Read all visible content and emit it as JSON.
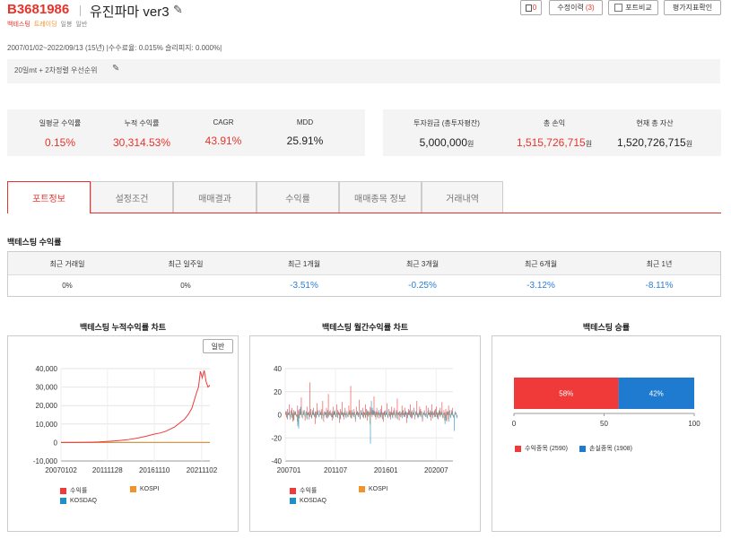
{
  "header": {
    "code": "B3681986",
    "name": "유진파마 ver3",
    "tags": [
      "백테스팅",
      "트레이딩",
      "일봉",
      "일반"
    ],
    "buttons": {
      "memo_count": "0",
      "edit_history_label": "수정이력",
      "edit_history_count": "(3)",
      "portfolio_compare": "포트비교",
      "eval_metrics": "평가지표확인"
    }
  },
  "period_text": "2007/01/02~2022/09/13 (15년) |수수료율: 0.015% 슬리피지: 0.000%|",
  "memo": "20일mt + 2차정렬 우선순위",
  "stats": {
    "left": [
      {
        "label": "일평균 수익률",
        "value": "0.15%"
      },
      {
        "label": "누적 수익률",
        "value": "30,314.53%"
      },
      {
        "label": "CAGR",
        "value": "43.91%"
      },
      {
        "label": "MDD",
        "value": "25.91%"
      }
    ],
    "right": [
      {
        "label": "투자원금 (총투자평잔)",
        "value": "5,000,000",
        "unit": "원"
      },
      {
        "label": "총 손익",
        "value": "1,515,726,715",
        "unit": "원"
      },
      {
        "label": "현재 총 자산",
        "value": "1,520,726,715",
        "unit": "원"
      }
    ]
  },
  "tabs": [
    "포트정보",
    "설정조건",
    "매매결과",
    "수익률",
    "매매종목 정보",
    "거래내역"
  ],
  "backtest_returns": {
    "title": "백테스팅 수익률",
    "headers": [
      "최근 거래일",
      "최근 일주일",
      "최근 1개월",
      "최근 3개월",
      "최근 6개월",
      "최근 1년"
    ],
    "values": [
      "0%",
      "0%",
      "-3.51%",
      "-0.25%",
      "-3.12%",
      "-8.11%"
    ]
  },
  "colors": {
    "accent": "#e8332c",
    "kospi": "#f0932b",
    "kosdaq": "#1f8fc9",
    "profit": "#f03a3a",
    "loss": "#1f7bd0",
    "negative_value": "#2e7dd2"
  },
  "charts": {
    "cumulative_title": "백테스팅 누적수익률 차트",
    "general_button": "일반",
    "monthly_title": "백테스팅 월간수익률 차트",
    "winrate_title": "백테스팅 승률"
  },
  "chart_data": [
    {
      "type": "line",
      "title": "백테스팅 누적수익률 차트",
      "x_ticks": [
        "20070102",
        "20111128",
        "20161110",
        "20211102"
      ],
      "y_ticks": [
        -10000,
        0,
        10000,
        20000,
        30000,
        40000
      ],
      "y_tick_labels": [
        "-10,000",
        "0",
        "10,000",
        "20,000",
        "30,000",
        "40,000"
      ],
      "ylim": [
        -10000,
        40000
      ],
      "series": [
        {
          "name": "수익률",
          "color": "#f03a3a",
          "x": [
            2007.0,
            2008.0,
            2009.0,
            2010.0,
            2011.0,
            2012.0,
            2013.0,
            2014.0,
            2015.0,
            2016.0,
            2016.8,
            2017.5,
            2018.0,
            2018.5,
            2019.0,
            2019.5,
            2020.0,
            2020.4,
            2020.8,
            2021.0,
            2021.3,
            2021.5,
            2021.7,
            2021.9,
            2022.1,
            2022.3,
            2022.5,
            2022.7
          ],
          "y": [
            0,
            20,
            60,
            150,
            300,
            600,
            1000,
            1500,
            2300,
            3400,
            4500,
            5200,
            6000,
            7200,
            8500,
            10500,
            12500,
            15000,
            18500,
            22000,
            27000,
            30000,
            38500,
            35000,
            39000,
            33000,
            30000,
            31000
          ]
        },
        {
          "name": "KOSPI",
          "color": "#f0932b",
          "x": [
            2007.0,
            2022.7
          ],
          "y": [
            0,
            40
          ]
        },
        {
          "name": "KOSDAQ",
          "color": "#1f8fc9",
          "x": [
            2007.0,
            2022.7
          ],
          "y": [
            0,
            30
          ]
        }
      ]
    },
    {
      "type": "bar",
      "title": "백테스팅 월간수익률 차트",
      "x_ticks": [
        "200701",
        "201107",
        "201601",
        "202007"
      ],
      "y_ticks": [
        -40,
        -20,
        0,
        20,
        40
      ],
      "ylim": [
        -40,
        40
      ],
      "series": [
        {
          "name": "수익률",
          "color": "#f03a3a",
          "values": [
            3,
            -2,
            5,
            1,
            9,
            -4,
            2,
            6,
            -6,
            4,
            1,
            3,
            -1,
            8,
            4,
            -3,
            2,
            15,
            -2,
            4,
            1,
            -5,
            3,
            7,
            2,
            -4,
            28,
            5,
            -3,
            2,
            6,
            1,
            -8,
            3,
            10,
            2,
            -2,
            4,
            1,
            5,
            12,
            -6,
            3,
            2,
            6,
            -3,
            18,
            2,
            4,
            1,
            -5,
            7,
            3,
            2,
            -2,
            9,
            4,
            1,
            -7,
            5,
            3,
            11,
            2,
            -4,
            6,
            1,
            3,
            -2,
            8,
            4,
            25,
            -3,
            2,
            5,
            1,
            -6,
            7,
            3,
            2,
            13,
            -4,
            4,
            1,
            6,
            -3,
            2,
            9,
            5,
            -5,
            3,
            1,
            7,
            2,
            -2,
            4,
            16,
            3,
            -4,
            6,
            2,
            1,
            -3,
            5,
            8,
            2,
            -6,
            3,
            4,
            1,
            10,
            -2,
            5,
            3,
            -4,
            7,
            2,
            1,
            6,
            -3,
            4,
            14,
            2,
            -5,
            3,
            1,
            8,
            4,
            -2,
            6,
            3,
            -7,
            2,
            5,
            1,
            9,
            -3,
            4,
            2,
            6,
            -4,
            3,
            12,
            1,
            -2,
            7,
            5,
            3,
            -6,
            2,
            4,
            1,
            8,
            -3,
            6,
            2,
            4,
            -5,
            9,
            3,
            1,
            -2,
            5,
            7,
            2,
            -4,
            3,
            6,
            1,
            11,
            -3,
            4,
            2,
            5,
            -6,
            3,
            8,
            1,
            -2,
            4,
            6
          ]
        },
        {
          "name": "KOSPI",
          "color": "#f0932b",
          "values": [
            2,
            -3,
            1,
            2,
            -1,
            3,
            -2,
            1,
            -4,
            2,
            1,
            -1,
            -6,
            -8,
            3,
            5,
            2,
            -2,
            1,
            3,
            -1,
            2,
            -3,
            1,
            2,
            -1,
            1,
            -2,
            3,
            1,
            -1,
            2,
            -2,
            1,
            3,
            -1,
            1,
            2,
            -3,
            1,
            -1,
            2,
            1,
            -2,
            3,
            -1,
            2,
            1,
            -1,
            2,
            -2,
            1,
            3,
            -1,
            1,
            -2,
            2,
            1,
            -3,
            1,
            2,
            -1,
            1,
            3,
            -2,
            1,
            -1,
            2,
            1,
            -2,
            3,
            1,
            -1,
            2,
            -3,
            1,
            2,
            -1,
            1,
            -2,
            3,
            1,
            -1,
            2,
            1,
            -2,
            1,
            3,
            -1,
            2,
            -8,
            6,
            4,
            2,
            3,
            -1,
            2,
            1,
            -2,
            3,
            1,
            -1,
            2,
            -3,
            1,
            2,
            -1,
            1,
            3,
            -2,
            1,
            -1,
            2,
            1,
            -2,
            3,
            1,
            -1,
            2,
            -3,
            1,
            2,
            -1,
            1,
            -2,
            3,
            1,
            -1,
            2,
            1,
            -2,
            1,
            3,
            -1,
            2,
            -2,
            1,
            3,
            -1,
            2,
            1,
            -2,
            1,
            3,
            -1,
            2,
            -3,
            1,
            2,
            -1,
            1,
            -2,
            3,
            1,
            -1,
            2,
            1,
            -2,
            1,
            3,
            -1,
            2,
            -2,
            1,
            3,
            -1,
            2,
            1,
            -2,
            1,
            -5,
            -3,
            2,
            1,
            -4,
            3,
            -2,
            1,
            2,
            -1,
            -3,
            2,
            1,
            -2
          ]
        },
        {
          "name": "KOSDAQ",
          "color": "#1f8fc9",
          "values": [
            3,
            -4,
            2,
            3,
            -2,
            4,
            -3,
            2,
            -5,
            3,
            1,
            -2,
            -10,
            -12,
            5,
            7,
            3,
            -3,
            2,
            4,
            -2,
            3,
            -4,
            2,
            3,
            -2,
            2,
            -3,
            4,
            2,
            -2,
            3,
            -3,
            2,
            4,
            -2,
            2,
            3,
            -4,
            2,
            -2,
            3,
            2,
            -3,
            4,
            -2,
            3,
            2,
            -2,
            3,
            -3,
            2,
            4,
            -2,
            2,
            -3,
            3,
            2,
            -4,
            2,
            3,
            -2,
            2,
            4,
            -3,
            2,
            -2,
            3,
            2,
            -3,
            4,
            2,
            -2,
            3,
            -4,
            2,
            3,
            -2,
            2,
            -3,
            4,
            2,
            -2,
            3,
            2,
            -3,
            2,
            4,
            -2,
            3,
            -25,
            12,
            6,
            3,
            4,
            -2,
            3,
            2,
            -3,
            4,
            2,
            -2,
            3,
            -4,
            2,
            3,
            -2,
            2,
            4,
            -3,
            2,
            -2,
            3,
            2,
            -3,
            4,
            2,
            -2,
            3,
            -4,
            2,
            3,
            -2,
            2,
            -3,
            4,
            2,
            -2,
            3,
            2,
            -3,
            2,
            4,
            -2,
            3,
            -3,
            2,
            4,
            -2,
            3,
            2,
            -3,
            2,
            4,
            -2,
            3,
            -4,
            2,
            3,
            -2,
            2,
            -3,
            4,
            2,
            -2,
            3,
            2,
            -3,
            2,
            4,
            -2,
            3,
            -3,
            2,
            4,
            -2,
            3,
            2,
            -3,
            2,
            -8,
            -5,
            3,
            2,
            -6,
            4,
            -3,
            2,
            3,
            -2,
            -14,
            3,
            2,
            -3
          ]
        }
      ]
    },
    {
      "type": "bar",
      "title": "백테스팅 승률",
      "orientation": "horizontal-stacked",
      "x_ticks": [
        0,
        50,
        100
      ],
      "xlim": [
        0,
        100
      ],
      "series": [
        {
          "name": "수익종목 (2590)",
          "label": "58%",
          "value": 58,
          "color": "#f03a3a"
        },
        {
          "name": "손실종목 (1908)",
          "label": "42%",
          "value": 42,
          "color": "#1f7bd0"
        }
      ]
    }
  ]
}
